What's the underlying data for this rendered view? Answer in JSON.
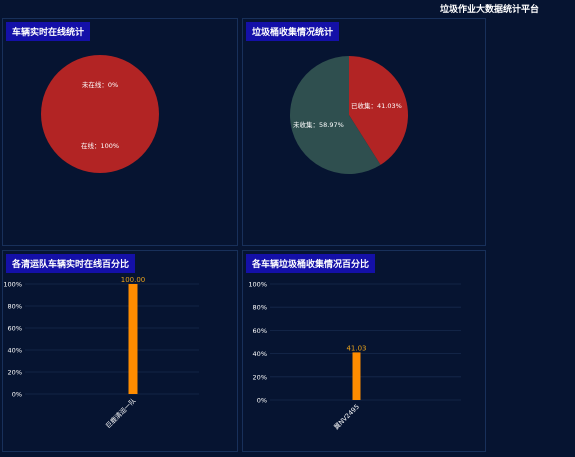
{
  "platform_title": "垃圾作业大数据统计平台",
  "colors": {
    "background": "#061431",
    "title_bg": "#1410a8",
    "red": "#b22424",
    "dark_green": "#2f4f4f",
    "bar": "#ff8c00"
  },
  "panels": {
    "vehicle_online": {
      "title": "车辆实时在线统计"
    },
    "bin_collection": {
      "title": "垃圾桶收集情况统计"
    },
    "team_online": {
      "title": "各清运队车辆实时在线百分比"
    },
    "vehicle_collection": {
      "title": "各车辆垃圾桶收集情况百分比"
    }
  },
  "chart_data": [
    {
      "type": "pie",
      "title": "车辆实时在线统计",
      "slices": [
        {
          "label": "未在线",
          "value": 0,
          "text": "未在线：0%",
          "color": "#b22424"
        },
        {
          "label": "在线",
          "value": 100,
          "text": "在线：100%",
          "color": "#b22424"
        }
      ]
    },
    {
      "type": "pie",
      "title": "垃圾桶收集情况统计",
      "slices": [
        {
          "label": "已收集",
          "value": 41.03,
          "text": "已收集：41.03%",
          "color": "#b22424"
        },
        {
          "label": "未收集",
          "value": 58.97,
          "text": "未收集：58.97%",
          "color": "#2f4f4f"
        }
      ]
    },
    {
      "type": "bar",
      "title": "各清运队车辆实时在线百分比",
      "categories": [
        "巨鹿清运一队"
      ],
      "values": [
        100
      ],
      "value_labels": [
        "100.00"
      ],
      "yticks": [
        "0%",
        "20%",
        "40%",
        "60%",
        "80%",
        "100%"
      ],
      "ylim": [
        0,
        100
      ]
    },
    {
      "type": "bar",
      "title": "各车辆垃圾桶收集情况百分比",
      "categories": [
        "冀NV2495"
      ],
      "values": [
        41.03
      ],
      "value_labels": [
        "41.03"
      ],
      "yticks": [
        "0%",
        "20%",
        "40%",
        "60%",
        "80%",
        "100%"
      ],
      "ylim": [
        0,
        100
      ]
    }
  ]
}
